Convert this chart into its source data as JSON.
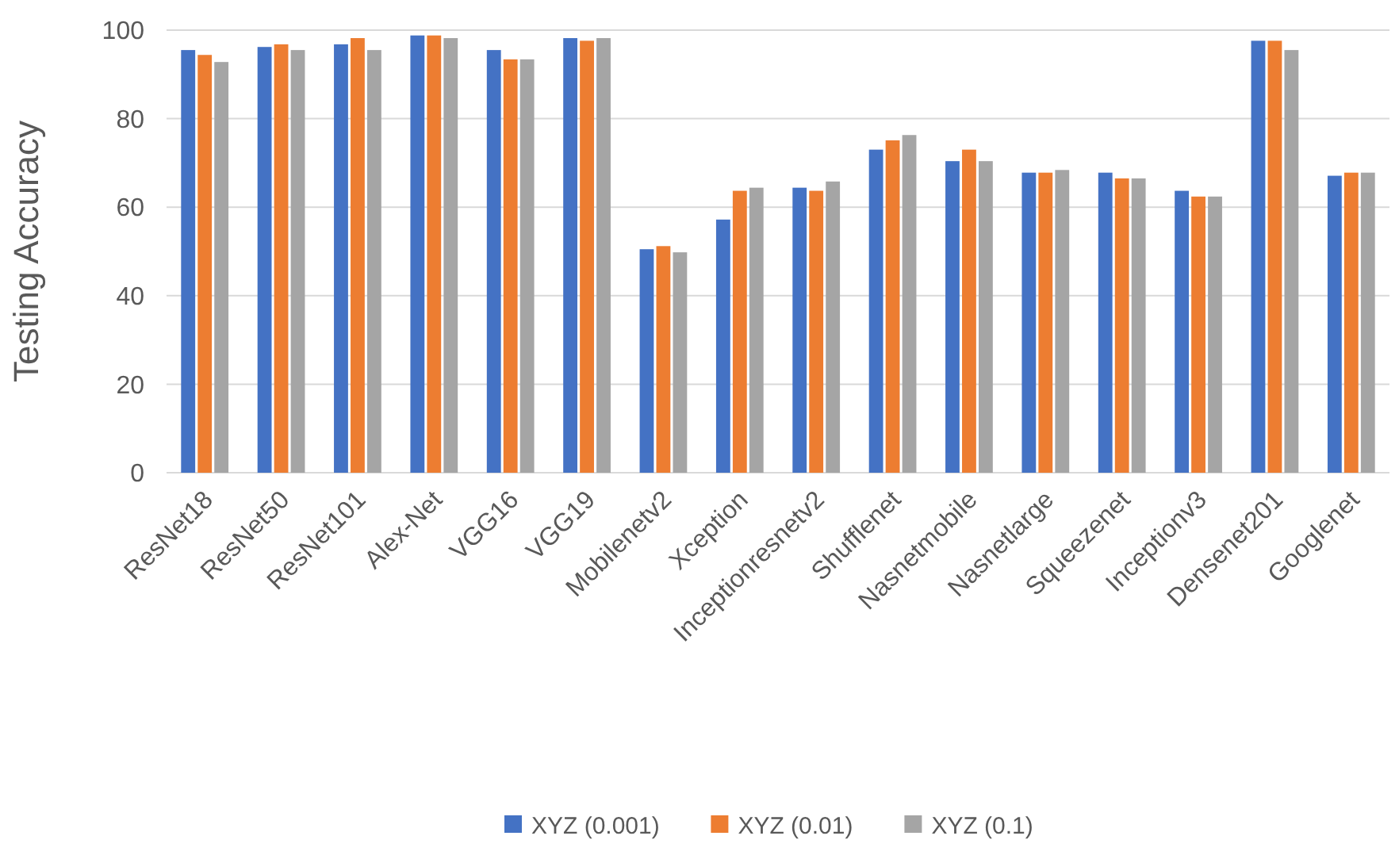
{
  "chart_data": {
    "type": "bar",
    "ylabel": "Testing Accuracy",
    "categories": [
      "ResNet18",
      "ResNet50",
      "ResNet101",
      "Alex-Net",
      "VGG16",
      "VGG19",
      "Mobilenetv2",
      "Xception",
      "Inceptionresnetv2",
      "Shufflenet",
      "Nasnetmobile",
      "Nasnetlarge",
      "Squeezenet",
      "Inceptionv3",
      "Densenet201",
      "Googlenet"
    ],
    "series": [
      {
        "name": "XYZ (0.001)",
        "color": "#4472c4",
        "values": [
          95.5,
          96.2,
          96.8,
          98.8,
          95.5,
          98.2,
          50.5,
          57.2,
          64.4,
          73.0,
          70.4,
          67.8,
          67.8,
          63.7,
          97.6,
          67.1
        ]
      },
      {
        "name": "XYZ (0.01)",
        "color": "#ed7d31",
        "values": [
          94.4,
          96.8,
          98.2,
          98.8,
          93.4,
          97.6,
          51.2,
          63.7,
          63.7,
          75.1,
          73.0,
          67.8,
          66.5,
          62.4,
          97.6,
          67.8
        ]
      },
      {
        "name": "XYZ (0.1)",
        "color": "#a5a5a5",
        "values": [
          92.8,
          95.5,
          95.5,
          98.2,
          93.4,
          98.2,
          49.8,
          64.4,
          65.8,
          76.3,
          70.4,
          68.4,
          66.5,
          62.4,
          95.5,
          67.8
        ]
      }
    ],
    "ylim": [
      0,
      100
    ],
    "yticks": [
      0,
      20,
      40,
      60,
      80,
      100
    ],
    "grid": "y",
    "legend": "bottom"
  }
}
